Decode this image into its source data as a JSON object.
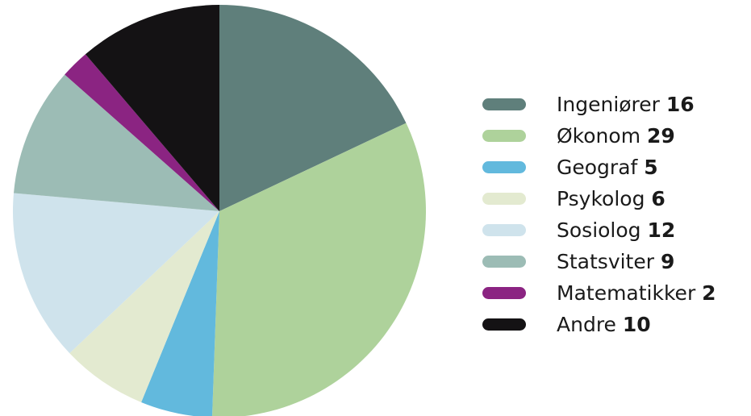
{
  "chart_data": {
    "type": "pie",
    "legend_position": "right",
    "slices": [
      {
        "label": "Ingeniører",
        "value": 16,
        "value_text": "16",
        "color": "#5f7f7b"
      },
      {
        "label": "Økonom",
        "value": 29,
        "value_text": "29",
        "color": "#aed29b"
      },
      {
        "label": "Geograf",
        "value": 5,
        "value_text": "5",
        "color": "#62b9dd"
      },
      {
        "label": "Psykolog",
        "value": 6,
        "value_text": "6",
        "color": "#e3ead0"
      },
      {
        "label": "Sosiolog",
        "value": 12,
        "value_text": "12",
        "color": "#cfe3ec"
      },
      {
        "label": "Statsviter",
        "value": 9,
        "value_text": "9",
        "color": "#9cbcb5"
      },
      {
        "label": "Matematikker",
        "value": 2,
        "value_text": "2",
        "color": "#8b2482"
      },
      {
        "label": "Andre",
        "value": 10,
        "value_text": "10",
        "color": "#141214"
      }
    ]
  }
}
